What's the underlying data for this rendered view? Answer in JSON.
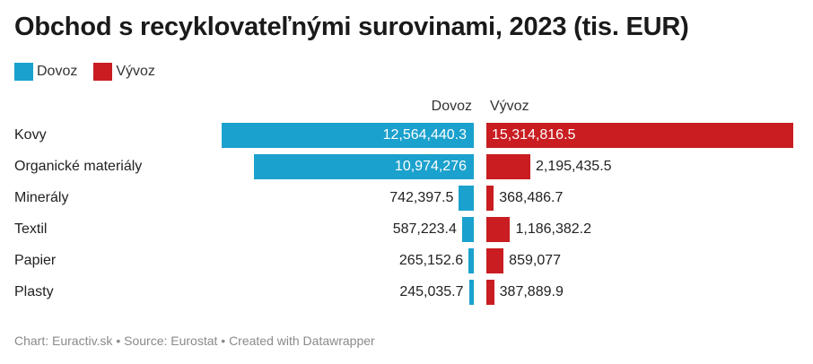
{
  "title": "Obchod s recyklovateľnými surovinami, 2023 (tis. EUR)",
  "legend": [
    {
      "label": "Dovoz",
      "color": "#1ba1cd"
    },
    {
      "label": "Vývoz",
      "color": "#c91d21"
    }
  ],
  "column_headers": {
    "left": "Dovoz",
    "right": "Vývoz"
  },
  "footer": "Chart: Euractiv.sk • Source: Eurostat • Created with Datawrapper",
  "chart_data": {
    "type": "bar",
    "orientation": "horizontal-diverging",
    "categories": [
      "Kovy",
      "Organické materiály",
      "Minerály",
      "Textil",
      "Papier",
      "Plasty"
    ],
    "series": [
      {
        "name": "Dovoz",
        "color": "#1ba1cd",
        "values": [
          12564440.3,
          10974276,
          742397.5,
          587223.4,
          265152.6,
          245035.7
        ],
        "labels": [
          "12,564,440.3",
          "10,974,276",
          "742,397.5",
          "587,223.4",
          "265,152.6",
          "245,035.7"
        ]
      },
      {
        "name": "Vývoz",
        "color": "#c91d21",
        "values": [
          15314816.5,
          2195435.5,
          368486.7,
          1186382.2,
          859077,
          387889.9
        ],
        "labels": [
          "15,314,816.5",
          "2,195,435.5",
          "368,486.7",
          "1,186,382.2",
          "859,077",
          "387,889.9"
        ]
      }
    ],
    "title": "Obchod s recyklovateľnými surovinami, 2023 (tis. EUR)",
    "xlabel": "",
    "ylabel": "",
    "xlim": [
      0,
      15314816.5
    ],
    "grid": false,
    "legend_position": "top-left"
  }
}
